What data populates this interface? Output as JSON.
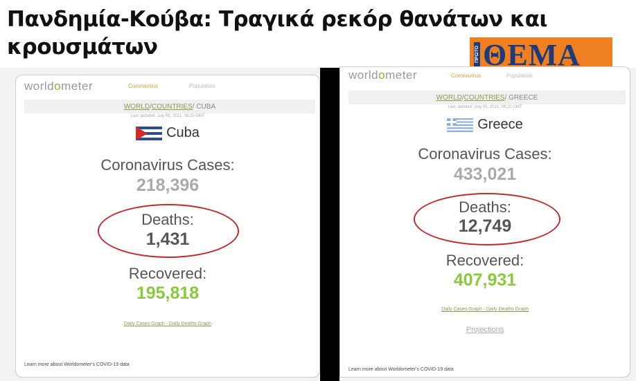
{
  "headline": {
    "title": "Πανδημία-Κούβα: Τραγικά ρεκόρ θανάτων και κρουσμάτων"
  },
  "logo": {
    "small": "ΠΡΩΤΟ",
    "big": "ΘΕΜΑ",
    "color": "#f07f22"
  },
  "panels": [
    {
      "brand_a": "world",
      "brand_b": "o",
      "brand_c": "meter",
      "nav_coronavirus": "Coronavirus",
      "nav_population": "Population",
      "crumb_world": "WORLD",
      "crumb_sep": " / ",
      "crumb_countries": "COUNTRIES",
      "crumb_country": " / CUBA",
      "updated": "Last updated: July 05, 2021, 08:20 GMT",
      "country": "Cuba",
      "cases_label": "Coronavirus Cases:",
      "cases": "218,396",
      "deaths_label": "Deaths:",
      "deaths": "1,431",
      "recovered_label": "Recovered:",
      "recovered": "195,818",
      "links": "Daily Cases Graph - Daily Deaths Graph",
      "learn": "Learn more about Worldometer's COVID-19 data"
    },
    {
      "brand_a": "world",
      "brand_b": "o",
      "brand_c": "meter",
      "nav_coronavirus": "Coronavirus",
      "nav_population": "Population",
      "crumb_world": "WORLD",
      "crumb_sep": " / ",
      "crumb_countries": "COUNTRIES",
      "crumb_country": " / GREECE",
      "updated": "Last updated: July 05, 2021, 08:20 GMT",
      "country": "Greece",
      "cases_label": "Coronavirus Cases:",
      "cases": "433,021",
      "deaths_label": "Deaths:",
      "deaths": "12,749",
      "recovered_label": "Recovered:",
      "recovered": "407,931",
      "links": "Daily Cases Graph - Daily Deaths Graph",
      "projections": "Projections",
      "learn": "Learn more about Worldometer's COVID-19 data"
    }
  ],
  "colors": {
    "highlight_ellipse": "#c0282d",
    "recovered": "#8aca3a"
  }
}
